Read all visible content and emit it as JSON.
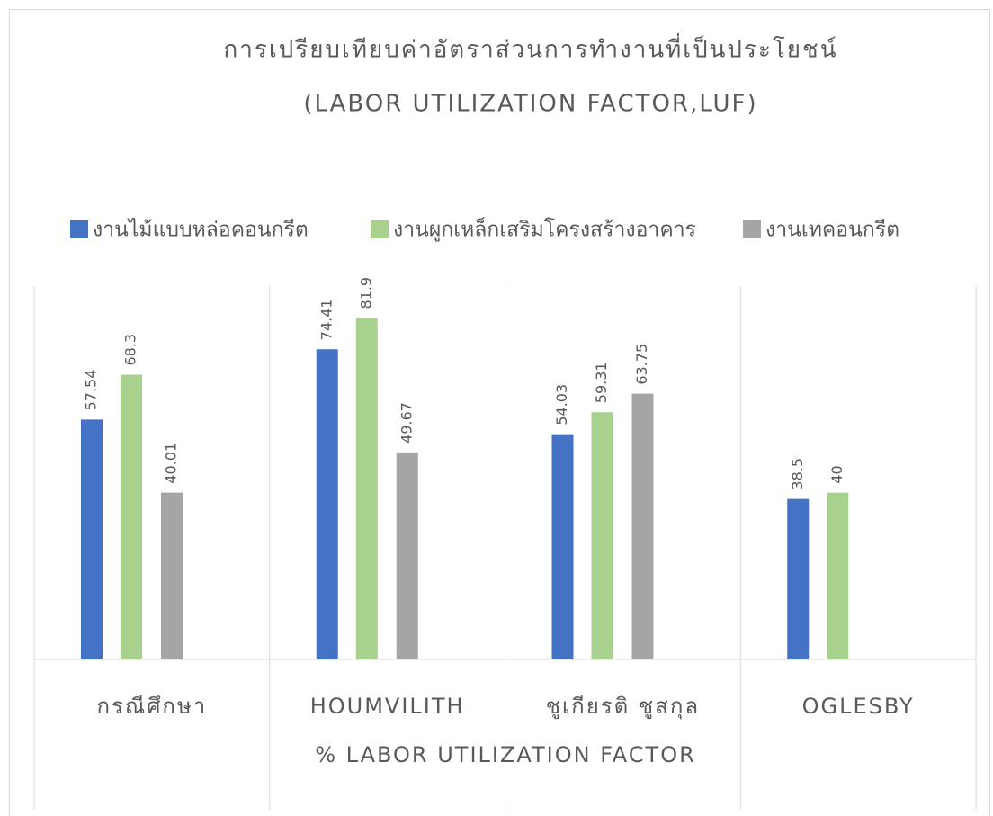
{
  "chart_data": {
    "type": "bar",
    "title": "การเปรียบเทียบค่าอัตราส่วนการทำงานที่เป็นประโยชน์",
    "subtitle": "(LABOR UTILIZATION FACTOR,LUF)",
    "xlabel": "% LABOR UTILIZATION FACTOR",
    "categories": [
      "กรณีศึกษา",
      "HOUMVILITH",
      "ชูเกียรติ ชูสกุล",
      "OGLESBY"
    ],
    "series": [
      {
        "name": "งานไม้แบบหล่อคอนกรีต",
        "color": "#4472c4",
        "values": [
          57.54,
          74.41,
          54.03,
          38.5
        ]
      },
      {
        "name": "งานผูกเหล็กเสริมโครงสร้างอาคาร",
        "color": "#a9d18e",
        "values": [
          68.3,
          81.9,
          59.31,
          40
        ]
      },
      {
        "name": "งานเทคอนกรีต",
        "color": "#a5a5a5",
        "values": [
          40.01,
          49.67,
          63.75,
          null
        ]
      }
    ],
    "ylim": [
      0,
      90
    ],
    "legend": "top"
  }
}
